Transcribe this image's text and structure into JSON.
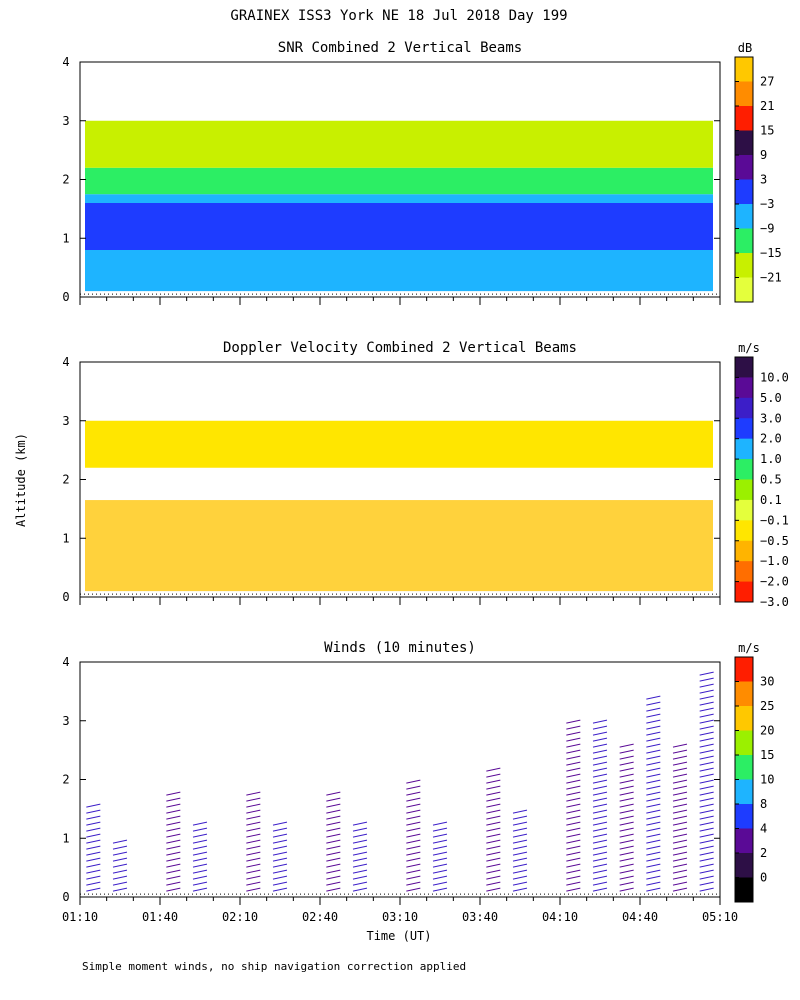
{
  "page": {
    "title": "GRAINEX ISS3 York NE  18 Jul 2018 Day 199",
    "ylabel": "Altitude (km)",
    "xlabel": "Time (UT)",
    "footnote": "Simple moment winds, no ship navigation correction applied"
  },
  "chart_data": [
    {
      "type": "heatmap",
      "title": "SNR Combined 2 Vertical Beams",
      "colorbar_unit": "dB",
      "colorbar_labels": [
        "27",
        "21",
        "15",
        "9",
        "3",
        "−3",
        "−9",
        "−15",
        "−21"
      ],
      "colorbar_colors": [
        "#ffc800",
        "#ff8c00",
        "#ff1e00",
        "#2d0f46",
        "#5a0a96",
        "#1e3cff",
        "#1eb4ff",
        "#2cee64",
        "#c8f000",
        "#e4ff3c"
      ],
      "y_ticks": [
        "0",
        "1",
        "2",
        "3",
        "4"
      ],
      "ylim": [
        0,
        4
      ],
      "xlim": [
        "01:10",
        "05:10"
      ],
      "layers": [
        {
          "y0": 0.1,
          "y1": 0.8,
          "color": "#1eb4ff"
        },
        {
          "y0": 0.8,
          "y1": 1.6,
          "color": "#1e3cff"
        },
        {
          "y0": 1.6,
          "y1": 1.75,
          "color": "#1eb4ff"
        },
        {
          "y0": 1.75,
          "y1": 2.2,
          "color": "#2cee64"
        },
        {
          "y0": 2.2,
          "y1": 3.0,
          "color": "#c8f000"
        }
      ]
    },
    {
      "type": "heatmap",
      "title": "Doppler Velocity Combined 2 Vertical Beams",
      "colorbar_unit": "m/s",
      "colorbar_labels": [
        "10.0",
        "5.0",
        "3.0",
        "2.0",
        "1.0",
        "0.5",
        "0.1",
        "−0.1",
        "−0.5",
        "−1.0",
        "−2.0",
        "−3.0"
      ],
      "colorbar_colors": [
        "#2d0f46",
        "#5a0a96",
        "#3c1ec8",
        "#1e3cff",
        "#1eb4ff",
        "#2cee64",
        "#9bf000",
        "#e4ff3c",
        "#ffe600",
        "#ffb400",
        "#ff6e00",
        "#ff1e00"
      ],
      "y_ticks": [
        "0",
        "1",
        "2",
        "3",
        "4"
      ],
      "ylim": [
        0,
        4
      ],
      "xlim": [
        "01:10",
        "05:10"
      ],
      "layers": [
        {
          "y0": 0.1,
          "y1": 1.65,
          "color": "#ffd23c"
        },
        {
          "y0": 2.2,
          "y1": 3.0,
          "color": "#ffe600"
        }
      ]
    },
    {
      "type": "scatter",
      "title": "Winds (10 minutes)",
      "colorbar_unit": "m/s",
      "colorbar_labels": [
        "30",
        "25",
        "20",
        "15",
        "10",
        "8",
        "4",
        "2",
        "0"
      ],
      "colorbar_colors": [
        "#ff1e00",
        "#ff8c00",
        "#ffc800",
        "#9bf000",
        "#2cee64",
        "#1eb4ff",
        "#1e3cff",
        "#5a0a96",
        "#2d0f46",
        "#000000"
      ],
      "y_ticks": [
        "0",
        "1",
        "2",
        "3",
        "4"
      ],
      "x_ticks": [
        "01:10",
        "01:40",
        "02:10",
        "02:40",
        "03:10",
        "03:40",
        "04:10",
        "04:40",
        "05:10"
      ],
      "ylim": [
        0,
        4
      ],
      "xlim": [
        "01:10",
        "05:10"
      ],
      "columns": [
        {
          "time": "01:15",
          "top": 1.6,
          "color": "#3c1ec8"
        },
        {
          "time": "01:25",
          "top": 1.0,
          "color": "#3c1ec8"
        },
        {
          "time": "01:45",
          "top": 1.8,
          "color": "#5a0a96"
        },
        {
          "time": "01:55",
          "top": 1.3,
          "color": "#3c1ec8"
        },
        {
          "time": "02:15",
          "top": 1.8,
          "color": "#5a0a96"
        },
        {
          "time": "02:25",
          "top": 1.3,
          "color": "#3c1ec8"
        },
        {
          "time": "02:45",
          "top": 1.8,
          "color": "#5a0a96"
        },
        {
          "time": "02:55",
          "top": 1.3,
          "color": "#3c1ec8"
        },
        {
          "time": "03:15",
          "top": 2.0,
          "color": "#5a0a96"
        },
        {
          "time": "03:25",
          "top": 1.3,
          "color": "#3c1ec8"
        },
        {
          "time": "03:45",
          "top": 2.2,
          "color": "#5a0a96"
        },
        {
          "time": "03:55",
          "top": 1.5,
          "color": "#3c1ec8"
        },
        {
          "time": "04:15",
          "top": 3.0,
          "color": "#5a0a96"
        },
        {
          "time": "04:25",
          "top": 3.0,
          "color": "#3c1ec8"
        },
        {
          "time": "04:35",
          "top": 2.6,
          "color": "#5a0a96"
        },
        {
          "time": "04:45",
          "top": 3.4,
          "color": "#3c1ec8"
        },
        {
          "time": "04:55",
          "top": 2.6,
          "color": "#5a0a96"
        },
        {
          "time": "05:05",
          "top": 3.8,
          "color": "#3c1ec8"
        }
      ]
    }
  ]
}
